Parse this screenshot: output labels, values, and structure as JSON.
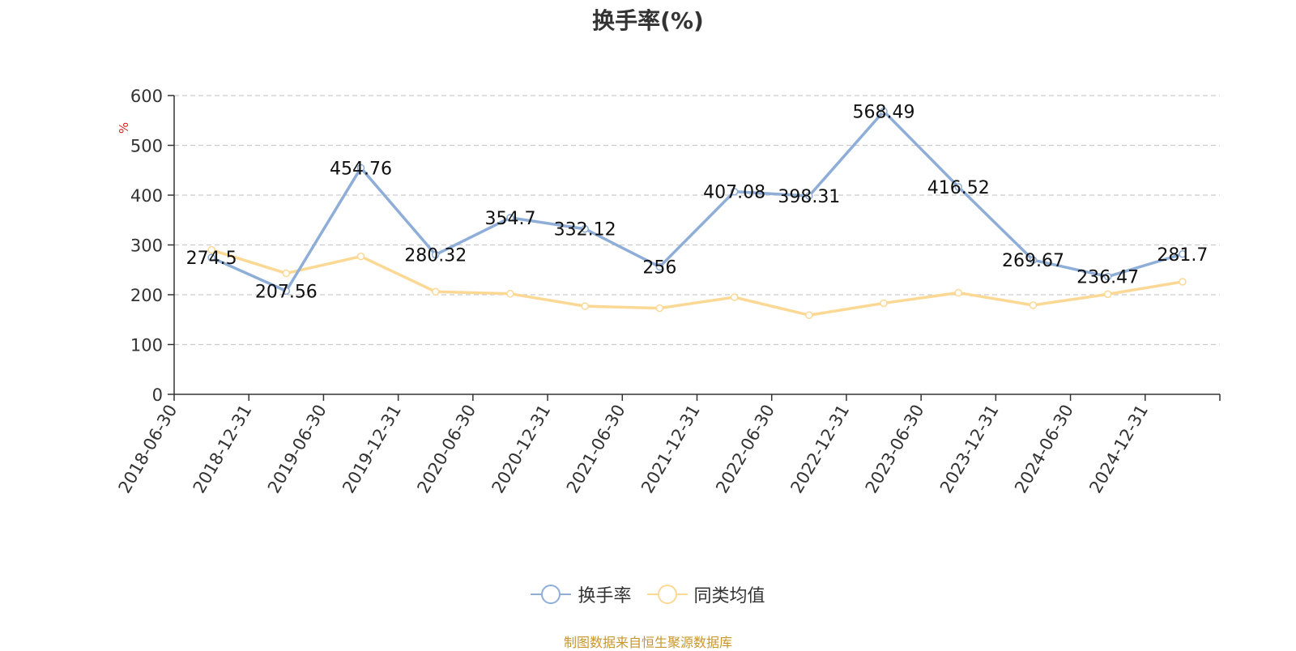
{
  "colors": {
    "series1": "#8eaed8",
    "series2": "#fcd895",
    "source": "#c8962d",
    "ylabel": "#e02020"
  },
  "chart_data": {
    "type": "line",
    "title": "换手率(%)",
    "ylabel": "%",
    "xlabel": "",
    "ylim": [
      0,
      600
    ],
    "yticks": [
      0,
      100,
      200,
      300,
      400,
      500,
      600
    ],
    "grid": true,
    "legend_position": "bottom",
    "categories": [
      "2018-06-30",
      "2018-12-31",
      "2019-06-30",
      "2019-12-31",
      "2020-06-30",
      "2020-12-31",
      "2021-06-30",
      "2021-12-31",
      "2022-06-30",
      "2022-12-31",
      "2023-06-30",
      "2023-12-31",
      "2024-06-30",
      "2024-12-31"
    ],
    "series": [
      {
        "name": "换手率",
        "values": [
          274.5,
          207.56,
          454.76,
          280.32,
          354.7,
          332.12,
          256,
          407.08,
          398.31,
          568.49,
          416.52,
          269.67,
          236.47,
          281.7
        ],
        "labels": [
          "274.5",
          "207.56",
          "454.76",
          "280.32",
          "354.7",
          "332.12",
          "256",
          "407.08",
          "398.31",
          "568.49",
          "416.52",
          "269.67",
          "236.47",
          "281.7"
        ]
      },
      {
        "name": "同类均值",
        "values": [
          290,
          243,
          277,
          206,
          202,
          177,
          173,
          195,
          159,
          183,
          204,
          179,
          201,
          226
        ]
      }
    ],
    "source": "制图数据来自恒生聚源数据库"
  }
}
